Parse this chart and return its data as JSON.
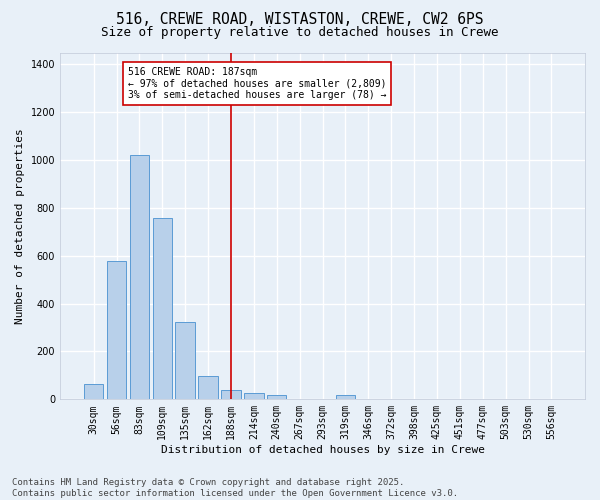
{
  "title_line1": "516, CREWE ROAD, WISTASTON, CREWE, CW2 6PS",
  "title_line2": "Size of property relative to detached houses in Crewe",
  "xlabel": "Distribution of detached houses by size in Crewe",
  "ylabel": "Number of detached properties",
  "bar_categories": [
    "30sqm",
    "56sqm",
    "83sqm",
    "109sqm",
    "135sqm",
    "162sqm",
    "188sqm",
    "214sqm",
    "240sqm",
    "267sqm",
    "293sqm",
    "319sqm",
    "346sqm",
    "372sqm",
    "398sqm",
    "425sqm",
    "451sqm",
    "477sqm",
    "503sqm",
    "530sqm",
    "556sqm"
  ],
  "bar_values": [
    65,
    578,
    1022,
    758,
    325,
    97,
    40,
    27,
    18,
    0,
    0,
    20,
    0,
    0,
    0,
    0,
    0,
    0,
    0,
    0,
    0
  ],
  "bar_color": "#b8d0ea",
  "bar_edge_color": "#5b9bd5",
  "vline_x_index": 6,
  "annotation_text_line1": "516 CREWE ROAD: 187sqm",
  "annotation_text_line2": "← 97% of detached houses are smaller (2,809)",
  "annotation_text_line3": "3% of semi-detached houses are larger (78) →",
  "annotation_box_color": "#ffffff",
  "annotation_box_edge_color": "#cc0000",
  "vline_color": "#cc0000",
  "ylim": [
    0,
    1450
  ],
  "yticks": [
    0,
    200,
    400,
    600,
    800,
    1000,
    1200,
    1400
  ],
  "background_color": "#e8f0f8",
  "grid_color": "#ffffff",
  "footer_text": "Contains HM Land Registry data © Crown copyright and database right 2025.\nContains public sector information licensed under the Open Government Licence v3.0.",
  "title_fontsize": 10.5,
  "subtitle_fontsize": 9,
  "axis_label_fontsize": 8,
  "tick_fontsize": 7,
  "annotation_fontsize": 7,
  "footer_fontsize": 6.5
}
